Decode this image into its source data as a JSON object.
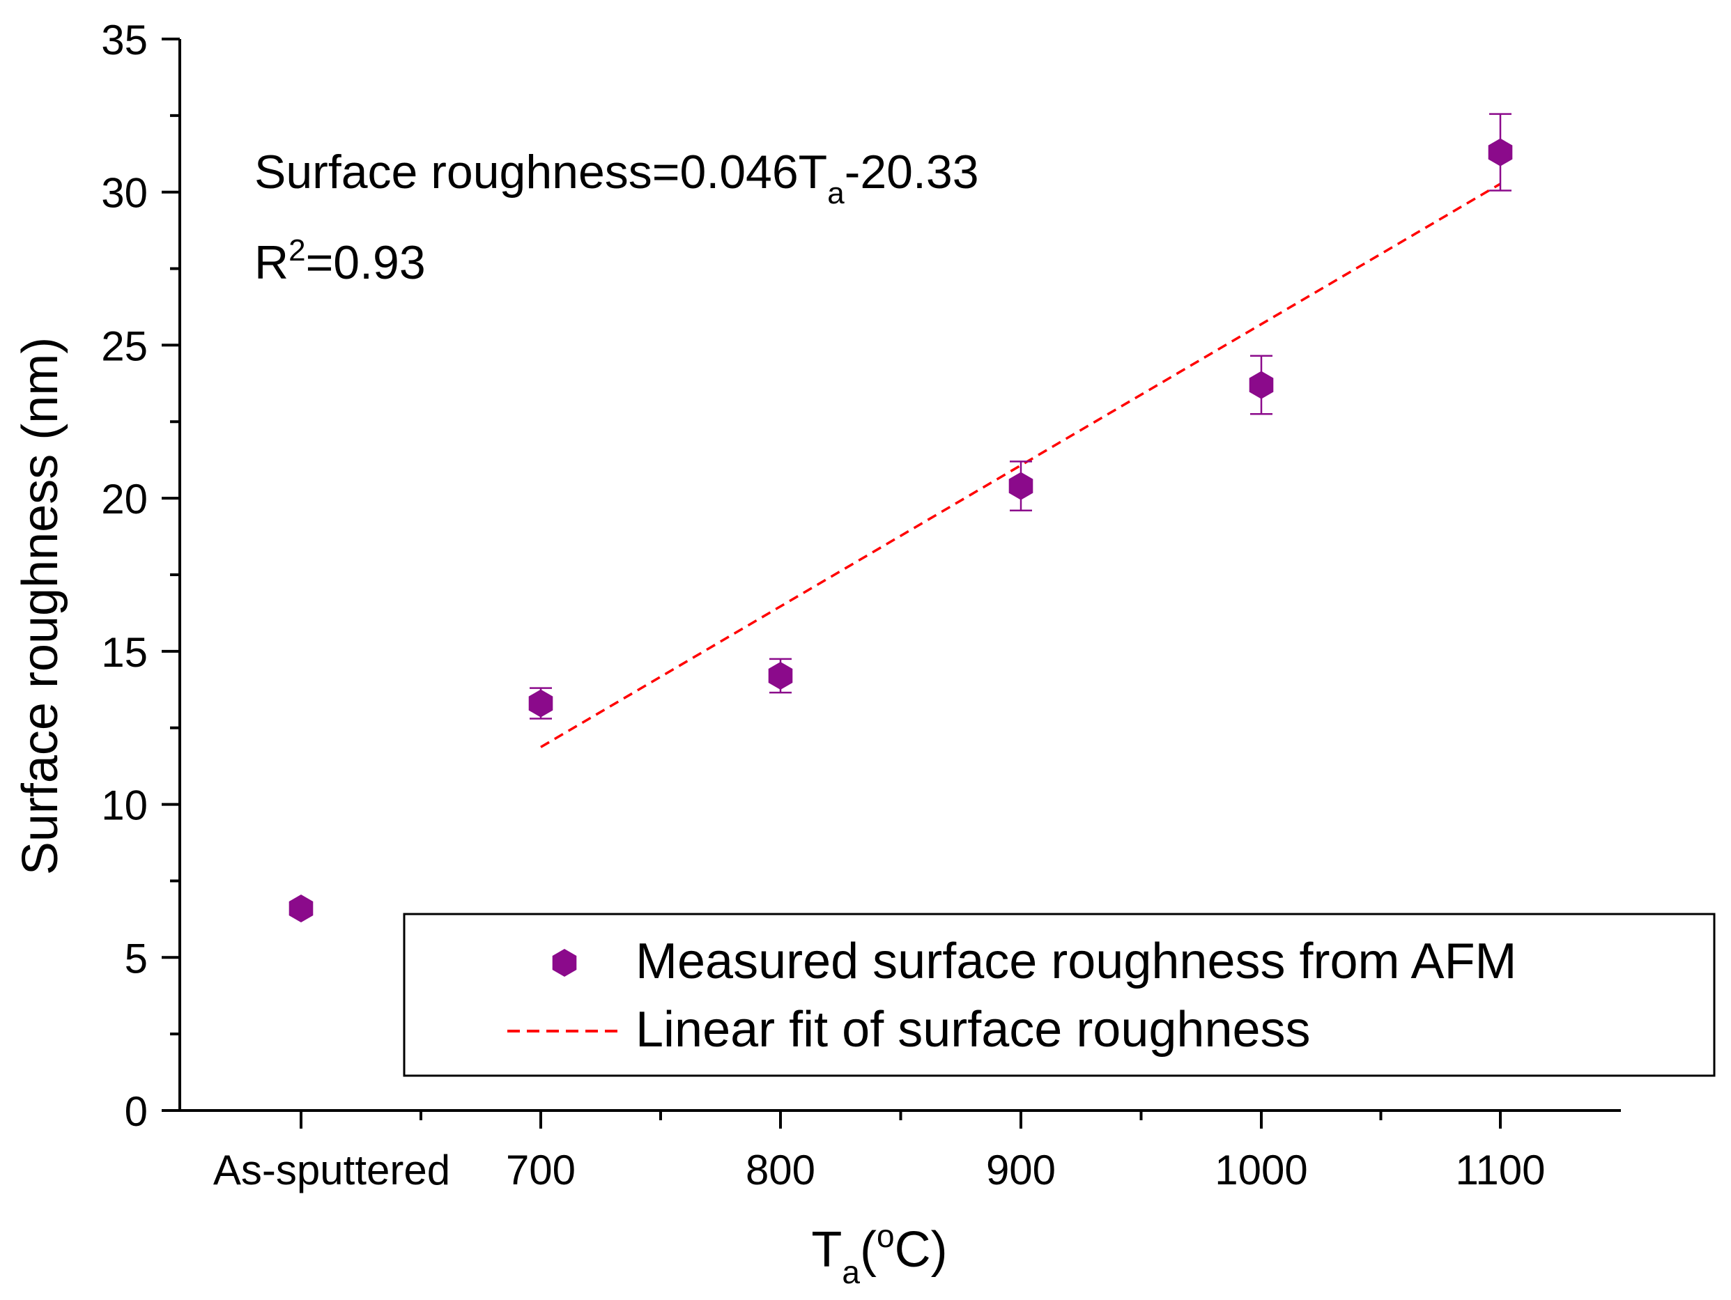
{
  "chart_data": {
    "type": "scatter",
    "x_categories": [
      "As-sputtered",
      "700",
      "800",
      "900",
      "1000",
      "1100"
    ],
    "series": [
      {
        "name": "Measured surface roughness from AFM",
        "marker": "hexagon",
        "color": "#8b0a8b",
        "points": [
          {
            "x": "As-sputtered",
            "y": 6.6,
            "err": 0
          },
          {
            "x": "700",
            "y": 13.3,
            "err": 0.5
          },
          {
            "x": "800",
            "y": 14.2,
            "err": 0.55
          },
          {
            "x": "900",
            "y": 20.4,
            "err": 0.8
          },
          {
            "x": "1000",
            "y": 23.7,
            "err": 0.95
          },
          {
            "x": "1100",
            "y": 31.3,
            "err": 1.25
          }
        ]
      },
      {
        "name": "Linear fit of surface roughness",
        "type": "line",
        "style": "dashed",
        "color": "#ff0000",
        "slope": 0.046,
        "intercept": -20.33,
        "x_range": [
          700,
          1100
        ]
      }
    ],
    "ylabel": "Surface roughness (nm)",
    "xlabel": {
      "base": "T",
      "sub": "a",
      "rest_open": "(",
      "sup": "o",
      "rest_close": "C)"
    },
    "ylim": [
      0,
      35
    ],
    "yticks": [
      0,
      5,
      10,
      15,
      20,
      25,
      30,
      35
    ],
    "equation": {
      "prefix": "Surface roughness=0.046T",
      "sub": "a",
      "suffix": "-20.33"
    },
    "r_squared": {
      "prefix": "R",
      "sup": "2",
      "suffix": "=0.93"
    },
    "legend_position": "bottom-right"
  }
}
